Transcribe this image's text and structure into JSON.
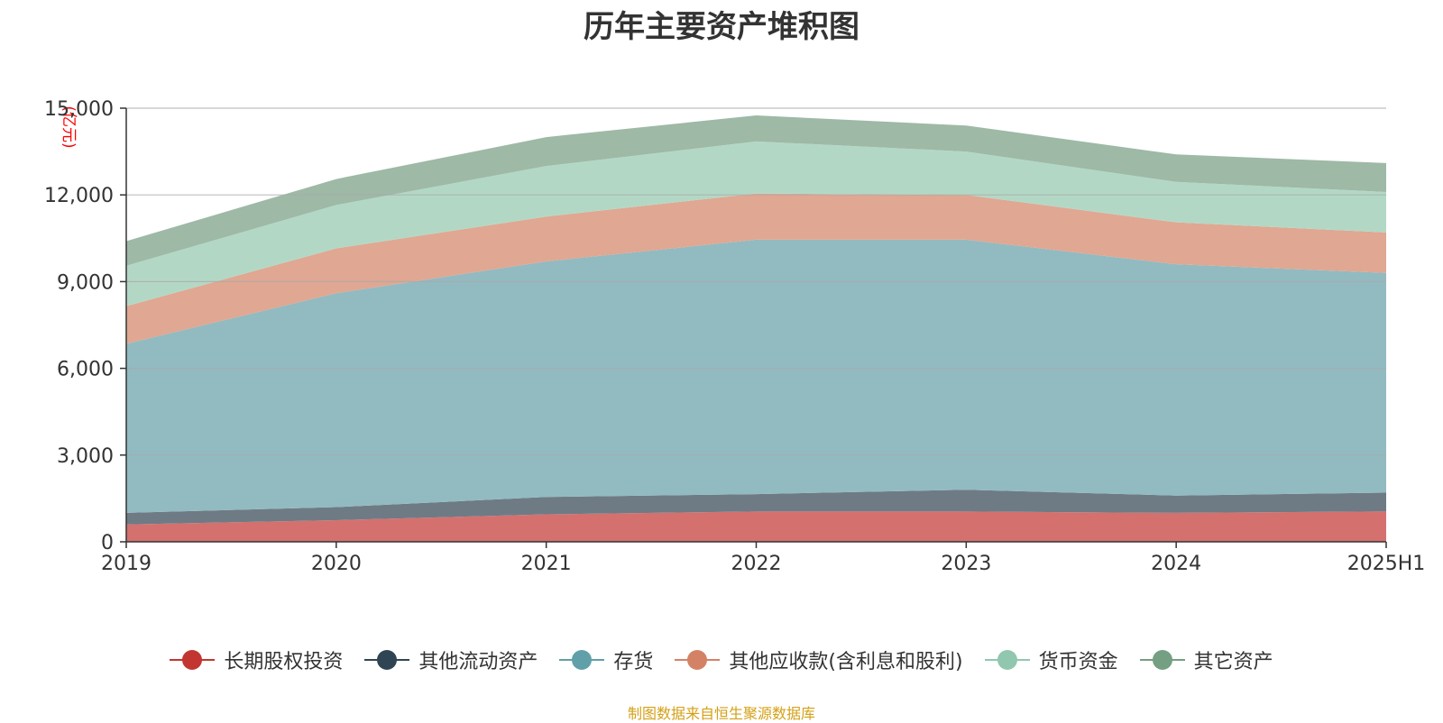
{
  "chart_data": {
    "type": "area",
    "stacked": true,
    "title": "历年主要资产堆积图",
    "unit_label": "(亿元)",
    "categories": [
      "2019",
      "2020",
      "2021",
      "2022",
      "2023",
      "2024",
      "2025H1"
    ],
    "ylim": [
      0,
      15000
    ],
    "yticks": [
      0,
      3000,
      6000,
      9000,
      12000,
      15000
    ],
    "ytick_labels": [
      "0",
      "3,000",
      "6,000",
      "9,000",
      "12,000",
      "15,000"
    ],
    "grid": true,
    "legend_position": "bottom",
    "series": [
      {
        "name": "长期股权投资",
        "color": "#c23531",
        "fill": "#d4716f",
        "values": [
          600,
          750,
          950,
          1050,
          1050,
          1000,
          1050
        ]
      },
      {
        "name": "其他流动资产",
        "color": "#2f4554",
        "fill": "#6e7b85",
        "values": [
          400,
          450,
          600,
          600,
          750,
          600,
          650
        ]
      },
      {
        "name": "存货",
        "color": "#61a0a8",
        "fill": "#92bac1",
        "values": [
          5850,
          7400,
          8150,
          8800,
          8650,
          8000,
          7600
        ]
      },
      {
        "name": "其他应收款(含利息和股利)",
        "color": "#d48265",
        "fill": "#e0a792",
        "values": [
          1300,
          1550,
          1550,
          1600,
          1550,
          1450,
          1400
        ]
      },
      {
        "name": "货币资金",
        "color": "#91c7ae",
        "fill": "#b2d8c5",
        "values": [
          1400,
          1500,
          1750,
          1800,
          1500,
          1400,
          1400
        ]
      },
      {
        "name": "其它资产",
        "color": "#749f83",
        "fill": "#9eb9a6",
        "values": [
          850,
          900,
          1000,
          900,
          900,
          950,
          1000
        ]
      }
    ]
  },
  "footer": {
    "source": "制图数据来自恒生聚源数据库"
  }
}
